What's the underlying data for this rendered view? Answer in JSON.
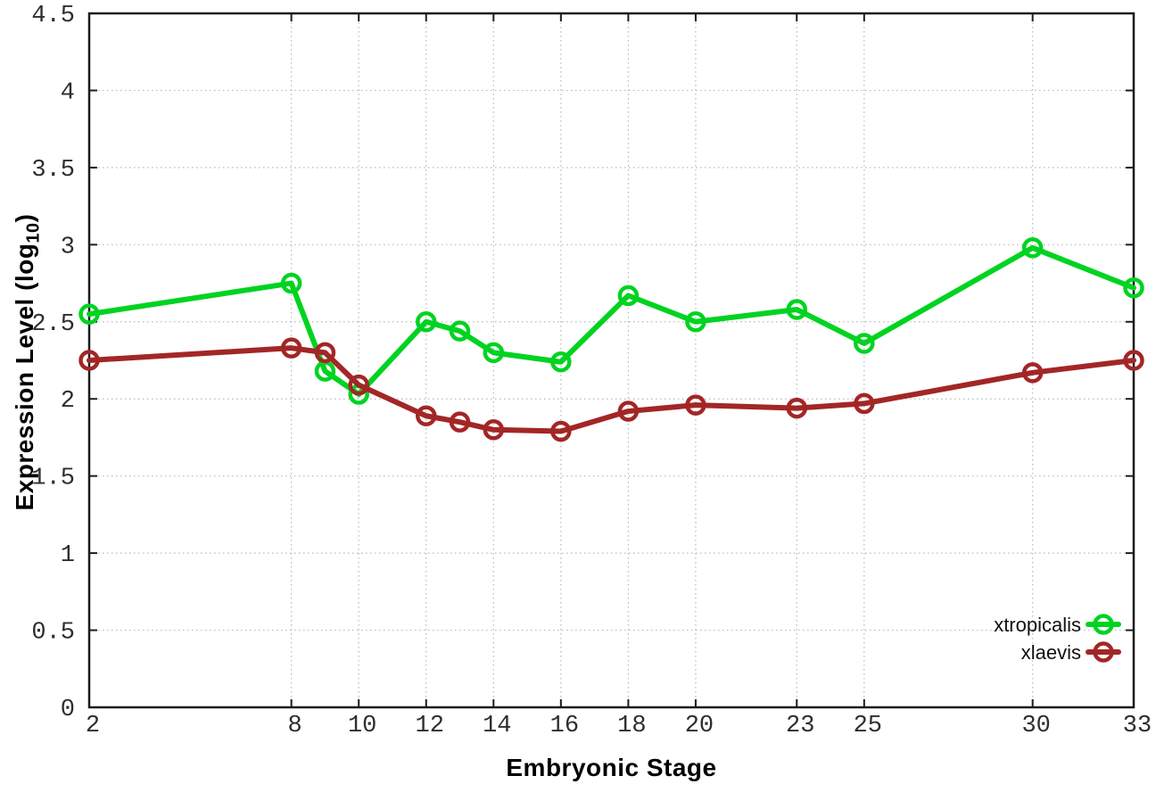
{
  "chart_data": {
    "type": "line",
    "title": "",
    "xlabel": "Embryonic Stage",
    "ylabel": "Expression Level (log10)",
    "ylabel_parts": {
      "pre": "Expression Level (log",
      "sub": "10",
      "post": ")"
    },
    "xlim": [
      2,
      33
    ],
    "ylim": [
      0,
      4.5
    ],
    "x_ticks": [
      2,
      8,
      10,
      12,
      14,
      16,
      18,
      20,
      23,
      25,
      30,
      33
    ],
    "x_tick_labels": [
      "2",
      "8",
      "10",
      "12",
      "14",
      "16",
      "18",
      "20",
      "23",
      "25",
      "30",
      "33"
    ],
    "y_ticks": [
      0,
      0.5,
      1,
      1.5,
      2,
      2.5,
      3,
      3.5,
      4,
      4.5
    ],
    "y_tick_labels": [
      "0",
      "0.5",
      "1",
      "1.5",
      "2",
      "2.5",
      "3",
      "3.5",
      "4",
      "4.5"
    ],
    "grid": true,
    "legend_position": "bottom-right",
    "marker": "open-circle",
    "x": [
      2,
      8,
      9,
      10,
      12,
      13,
      14,
      16,
      18,
      20,
      23,
      25,
      30,
      33
    ],
    "series": [
      {
        "name": "xtropicalis",
        "color": "#00d321",
        "values": [
          2.55,
          2.75,
          2.18,
          2.03,
          2.5,
          2.44,
          2.3,
          2.24,
          2.67,
          2.5,
          2.58,
          2.36,
          2.98,
          2.72
        ]
      },
      {
        "name": "xlaevis",
        "color": "#a32626",
        "values": [
          2.25,
          2.33,
          2.3,
          2.09,
          1.89,
          1.85,
          1.8,
          1.79,
          1.92,
          1.96,
          1.94,
          1.97,
          2.17,
          2.25
        ]
      }
    ],
    "colors": {
      "grid": "#b8b8b8",
      "border": "#1c1c1c",
      "tick_text": "#2e2e2e",
      "label_text": "#000000",
      "background": "#ffffff"
    }
  }
}
